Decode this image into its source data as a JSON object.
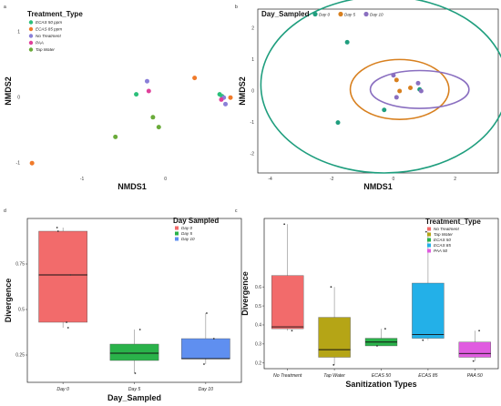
{
  "chart_data": [
    {
      "panel": "a",
      "type": "scatter",
      "xlabel": "NMDS1",
      "ylabel": "NMDS2",
      "xticks": [
        "-1",
        "0"
      ],
      "yticks": [
        "1",
        "0",
        "-1"
      ],
      "legend": {
        "title": "Treatment_Type",
        "position": "top-left",
        "items": [
          {
            "label": "ECAS 50 ppm",
            "color": "#2bbf7a"
          },
          {
            "label": "ECAS 85 ppm",
            "color": "#f07a2a"
          },
          {
            "label": "No Treatment",
            "color": "#8a7fd8"
          },
          {
            "label": "PAA",
            "color": "#e0409a"
          },
          {
            "label": "Tap Water",
            "color": "#6aab3a"
          }
        ]
      },
      "points": [
        {
          "series": "ECAS 85 ppm",
          "x": -1.6,
          "y": -1.0
        },
        {
          "series": "Tap Water",
          "x": -0.6,
          "y": -0.6
        },
        {
          "series": "Tap Water",
          "x": -0.15,
          "y": -0.3
        },
        {
          "series": "Tap Water",
          "x": -0.08,
          "y": -0.45
        },
        {
          "series": "ECAS 50 ppm",
          "x": -0.35,
          "y": 0.05
        },
        {
          "series": "No Treatment",
          "x": -0.22,
          "y": 0.25
        },
        {
          "series": "PAA",
          "x": -0.2,
          "y": 0.1
        },
        {
          "series": "ECAS 85 ppm",
          "x": 0.35,
          "y": 0.3
        },
        {
          "series": "ECAS 50 ppm",
          "x": 0.65,
          "y": 0.05
        },
        {
          "series": "ECAS 50 ppm",
          "x": 0.68,
          "y": 0.02
        },
        {
          "series": "No Treatment",
          "x": 0.7,
          "y": 0.0
        },
        {
          "series": "PAA",
          "x": 0.67,
          "y": -0.03
        },
        {
          "series": "ECAS 85 ppm",
          "x": 0.78,
          "y": 0.0
        },
        {
          "series": "No Treatment",
          "x": 0.72,
          "y": -0.1
        }
      ],
      "xlim": [
        -1.7,
        0.9
      ],
      "ylim": [
        -1.15,
        1.35
      ]
    },
    {
      "panel": "b",
      "type": "scatter",
      "xlabel": "NMDS1",
      "ylabel": "NMDS2",
      "xticks": [
        "-4",
        "-2",
        "0",
        "2"
      ],
      "yticks": [
        "2",
        "1",
        "0",
        "-1",
        "-2"
      ],
      "legend": {
        "title": "Day_Sampled",
        "position": "top",
        "items": [
          {
            "label": "Day 0",
            "color": "#1f9e7e"
          },
          {
            "label": "Day 5",
            "color": "#d8801f"
          },
          {
            "label": "Day 10",
            "color": "#8a6fc0"
          }
        ]
      },
      "points": [
        {
          "series": "Day 0",
          "x": -1.5,
          "y": 1.55
        },
        {
          "series": "Day 0",
          "x": -1.8,
          "y": -1.0
        },
        {
          "series": "Day 0",
          "x": -0.3,
          "y": -0.6
        },
        {
          "series": "Day 0",
          "x": 0.85,
          "y": 0.05
        },
        {
          "series": "Day 5",
          "x": 0.1,
          "y": 0.35
        },
        {
          "series": "Day 5",
          "x": 0.55,
          "y": 0.1
        },
        {
          "series": "Day 5",
          "x": 0.2,
          "y": 0.0
        },
        {
          "series": "Day 10",
          "x": 0.0,
          "y": 0.5
        },
        {
          "series": "Day 10",
          "x": 0.8,
          "y": 0.25
        },
        {
          "series": "Day 10",
          "x": 0.9,
          "y": 0.0
        },
        {
          "series": "Day 10",
          "x": 0.1,
          "y": -0.2
        }
      ],
      "ellipses": [
        {
          "series": "Day 0",
          "cx": -0.3,
          "cy": 0.2,
          "rx": 4.0,
          "ry": 2.8
        },
        {
          "series": "Day 5",
          "cx": 0.2,
          "cy": 0.05,
          "rx": 1.6,
          "ry": 0.95
        },
        {
          "series": "Day 10",
          "cx": 0.85,
          "cy": 0.05,
          "rx": 1.6,
          "ry": 0.6
        }
      ],
      "xlim": [
        -4.4,
        3.4
      ],
      "ylim": [
        -2.6,
        2.6
      ]
    },
    {
      "panel": "d",
      "type": "box",
      "xlabel": "Day_Sampled",
      "ylabel": "Divergence",
      "categories": [
        "Day 0",
        "Day 5",
        "Day 10"
      ],
      "yticks": [
        0.25,
        0.5,
        0.75
      ],
      "ylim": [
        0.1,
        1.0
      ],
      "legend": {
        "title": "Day Sampled",
        "position": "top-right",
        "items": [
          {
            "label": "Day 0",
            "color": "#f26b6b"
          },
          {
            "label": "Day 5",
            "color": "#2ab24a"
          },
          {
            "label": "Day 10",
            "color": "#5f8ff0"
          }
        ]
      },
      "boxes": [
        {
          "category": "Day 0",
          "color": "#f26b6b",
          "q1": 0.43,
          "median": 0.69,
          "q3": 0.93,
          "min": 0.4,
          "max": 0.95,
          "points": [
            0.4,
            0.43,
            0.69,
            0.93,
            0.95
          ]
        },
        {
          "category": "Day 5",
          "color": "#2ab24a",
          "q1": 0.22,
          "median": 0.26,
          "q3": 0.31,
          "min": 0.15,
          "max": 0.39,
          "points": [
            0.15,
            0.26,
            0.39
          ]
        },
        {
          "category": "Day 10",
          "color": "#5f8ff0",
          "q1": 0.23,
          "median": 0.23,
          "q3": 0.34,
          "min": 0.2,
          "max": 0.48,
          "points": [
            0.2,
            0.34,
            0.48
          ]
        }
      ]
    },
    {
      "panel": "c",
      "type": "box",
      "xlabel": "Sanitization Types",
      "ylabel": "Divergence",
      "categories": [
        "No Treatment",
        "Tap Water",
        "ECAS 50",
        "ECAS 85",
        "PAA 50"
      ],
      "yticks": [
        0.2,
        0.3,
        0.4,
        0.5,
        0.6
      ],
      "ylim": [
        0.17,
        0.96
      ],
      "legend": {
        "title": "Treatment_Type",
        "position": "top-right",
        "items": [
          {
            "label": "No Treatment",
            "color": "#f26b6b"
          },
          {
            "label": "Tap Water",
            "color": "#b5a516"
          },
          {
            "label": "ECAS 50",
            "color": "#2ab24a"
          },
          {
            "label": "ECAS 85",
            "color": "#23b0e8"
          },
          {
            "label": "PAA 50",
            "color": "#e05ce0"
          }
        ]
      },
      "boxes": [
        {
          "category": "No Treatment",
          "color": "#f26b6b",
          "q1": 0.38,
          "median": 0.39,
          "q3": 0.66,
          "min": 0.37,
          "max": 0.93,
          "points": [
            0.37,
            0.93
          ]
        },
        {
          "category": "Tap Water",
          "color": "#b5a516",
          "q1": 0.23,
          "median": 0.27,
          "q3": 0.44,
          "min": 0.19,
          "max": 0.6,
          "points": [
            0.19,
            0.6
          ]
        },
        {
          "category": "ECAS 50",
          "color": "#2ab24a",
          "q1": 0.29,
          "median": 0.31,
          "q3": 0.33,
          "min": 0.29,
          "max": 0.38,
          "points": [
            0.29,
            0.38
          ]
        },
        {
          "category": "ECAS 85",
          "color": "#23b0e8",
          "q1": 0.33,
          "median": 0.35,
          "q3": 0.62,
          "min": 0.32,
          "max": 0.89,
          "points": [
            0.32,
            0.89
          ]
        },
        {
          "category": "PAA 50",
          "color": "#e05ce0",
          "q1": 0.23,
          "median": 0.25,
          "q3": 0.31,
          "min": 0.21,
          "max": 0.37,
          "points": [
            0.21,
            0.37
          ]
        }
      ]
    }
  ],
  "panel_labels": [
    "a",
    "b",
    "d",
    "c"
  ]
}
